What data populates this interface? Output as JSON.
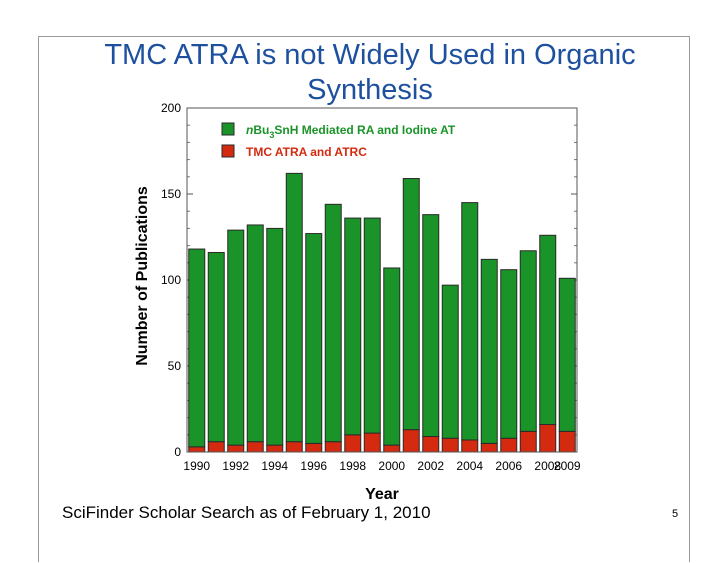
{
  "slide": {
    "title": "TMC ATRA is not Widely Used in Organic Synthesis",
    "footer": "SciFinder Scholar Search as of February 1, 2010",
    "page_number": "5"
  },
  "chart_data": {
    "type": "bar",
    "stacked": true,
    "xlabel": "Year",
    "ylabel": "Number of Publications",
    "ylim": [
      0,
      200
    ],
    "yticks": [
      0,
      50,
      100,
      150,
      200
    ],
    "xtick_labels": [
      "1990",
      "1992",
      "1994",
      "1996",
      "1998",
      "2000",
      "2002",
      "2004",
      "2006",
      "2008",
      "2009"
    ],
    "categories": [
      "1990",
      "1991",
      "1992",
      "1993",
      "1994",
      "1995",
      "1996",
      "1997",
      "1998",
      "1999",
      "2000",
      "2001",
      "2002",
      "2003",
      "2004",
      "2005",
      "2006",
      "2007",
      "2008",
      "2009"
    ],
    "series": [
      {
        "name": "TMC ATRA and ATRC",
        "color": "#d42a10",
        "values": [
          3,
          6,
          4,
          6,
          4,
          6,
          5,
          6,
          10,
          11,
          4,
          13,
          9,
          8,
          7,
          5,
          8,
          12,
          16,
          12
        ]
      },
      {
        "name": "nBu3SnH Mediated RA and Iodine AT",
        "color": "#1a9428",
        "values": [
          115,
          110,
          125,
          126,
          126,
          156,
          122,
          138,
          126,
          125,
          103,
          146,
          129,
          89,
          138,
          107,
          98,
          105,
          110,
          89
        ]
      }
    ],
    "legend_position": "top-right",
    "legend_items": [
      {
        "prefix": "n",
        "main": "Bu",
        "sub": "3",
        "rest": "SnH Mediated RA and Iodine AT",
        "color": "#1a9428"
      },
      {
        "prefix": "",
        "main": "TMC ATRA and ATRC",
        "sub": "",
        "rest": "",
        "color": "#d42a10"
      }
    ]
  }
}
